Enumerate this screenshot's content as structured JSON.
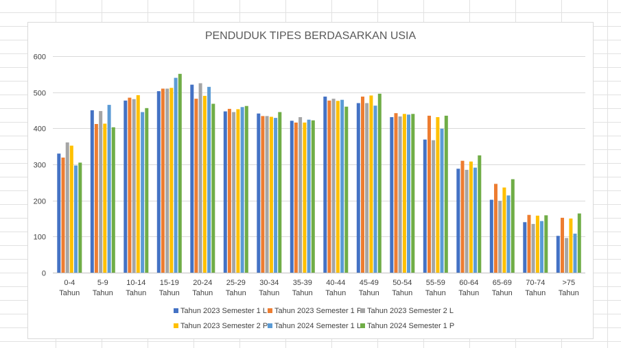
{
  "chart_data": {
    "type": "bar",
    "title": "PENDUDUK TIPES BERDASARKAN USIA",
    "categories": [
      "0-4 Tahun",
      "5-9 Tahun",
      "10-14 Tahun",
      "15-19 Tahun",
      "20-24 Tahun",
      "25-29 Tahun",
      "30-34 Tahun",
      "35-39 Tahun",
      "40-44 Tahun",
      "45-49 Tahun",
      "50-54 Tahun",
      "55-59 Tahun",
      "60-64 Tahun",
      "65-69 Tahun",
      "70-74 Tahun",
      ">75 Tahun"
    ],
    "category_lines": [
      [
        "0-4",
        "Tahun"
      ],
      [
        "5-9",
        "Tahun"
      ],
      [
        "10-14",
        "Tahun"
      ],
      [
        "15-19",
        "Tahun"
      ],
      [
        "20-24",
        "Tahun"
      ],
      [
        "25-29",
        "Tahun"
      ],
      [
        "30-34",
        "Tahun"
      ],
      [
        "35-39",
        "Tahun"
      ],
      [
        "40-44",
        "Tahun"
      ],
      [
        "45-49",
        "Tahun"
      ],
      [
        "50-54",
        "Tahun"
      ],
      [
        "55-59",
        "Tahun"
      ],
      [
        "60-64",
        "Tahun"
      ],
      [
        "65-69",
        "Tahun"
      ],
      [
        "70-74",
        "Tahun"
      ],
      [
        ">75",
        "Tahun"
      ]
    ],
    "yticks": [
      "0",
      "100",
      "200",
      "300",
      "400",
      "500",
      "600"
    ],
    "ylim": [
      0,
      600
    ],
    "grid": true,
    "legend_position": "bottom",
    "series": [
      {
        "name": "Tahun 2023 Semester 1 L",
        "color": "#4472c4",
        "values": [
          330,
          450,
          477,
          503,
          521,
          447,
          441,
          421,
          488,
          470,
          431,
          369,
          288,
          202,
          140,
          102
        ]
      },
      {
        "name": "Tahun 2023 Semester 1 P",
        "color": "#ed7d31",
        "values": [
          319,
          412,
          485,
          510,
          482,
          454,
          434,
          416,
          477,
          488,
          442,
          435,
          310,
          246,
          160,
          152
        ]
      },
      {
        "name": "Tahun 2023 Semester 2 L",
        "color": "#a5a5a5",
        "values": [
          361,
          448,
          481,
          510,
          525,
          445,
          434,
          431,
          482,
          470,
          433,
          367,
          285,
          199,
          135,
          96
        ]
      },
      {
        "name": "Tahun 2023 Semester 2 P",
        "color": "#ffc000",
        "values": [
          352,
          413,
          492,
          512,
          490,
          453,
          432,
          416,
          476,
          491,
          440,
          431,
          308,
          236,
          158,
          150
        ]
      },
      {
        "name": "Tahun 2024 Semester 1 L",
        "color": "#5b9bd5",
        "values": [
          297,
          465,
          445,
          540,
          515,
          459,
          429,
          424,
          479,
          463,
          438,
          399,
          291,
          214,
          143,
          108
        ]
      },
      {
        "name": "Tahun 2024 Semester 1 P",
        "color": "#70ad47",
        "values": [
          305,
          403,
          456,
          551,
          468,
          462,
          445,
          422,
          460,
          496,
          440,
          435,
          325,
          259,
          159,
          164
        ]
      }
    ]
  }
}
